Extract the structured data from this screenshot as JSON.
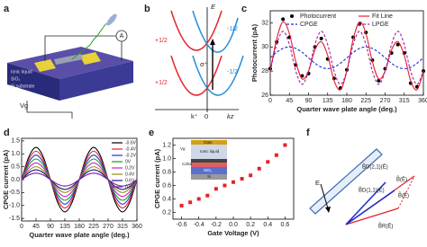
{
  "panel_labels": [
    "a",
    "b",
    "c",
    "d",
    "e",
    "f"
  ],
  "panel_a": {
    "ionic_liquid": "Ionic liquid",
    "sio2": "SiO₂",
    "substrate": "Si substrate",
    "ammeter": "A",
    "gate": "Vg"
  },
  "panel_b": {
    "energy": "E",
    "plus_top": "+1/2",
    "plus_bottom": "+1/2",
    "minus_top": "-1/2",
    "minus_bottom": "-1/2",
    "sigma": "σ⁺",
    "k_plus": "k⁺",
    "zero": "0",
    "kz": "kz"
  },
  "panel_e_inset": {
    "gate": "Gate",
    "ionic_liquid": "Ionic liquid",
    "cdse": "CdSe",
    "sio2": "SiO₂",
    "si": "Si",
    "vg": "Vg"
  },
  "panel_f": {
    "field": "E",
    "b_d21": "B̃D(2,1)(Ẽ)",
    "b_d11": "B̃D(1,1)(Ẽ)",
    "b_r": "B̃R(Ẽ)",
    "b_total": "B̃(Ẽ)",
    "b_total2": "B̃(Ẽ)"
  },
  "chart_data": [
    {
      "type": "line",
      "x_label": "Quarter wave plate angle (deg.)",
      "y_label": "Photocurrent (pA)",
      "x": [
        0,
        15,
        30,
        45,
        60,
        75,
        90,
        105,
        120,
        135,
        150,
        165,
        180,
        195,
        210,
        225,
        240,
        255,
        270,
        285,
        300,
        315,
        330,
        345,
        360
      ],
      "xlim": [
        0,
        360
      ],
      "xticks": [
        0,
        45,
        90,
        135,
        180,
        225,
        270,
        315,
        360
      ],
      "ylim": [
        26,
        33
      ],
      "yticks": [
        26,
        28,
        30,
        32
      ],
      "legend": "top",
      "series": [
        {
          "name": "Photocurrent",
          "color": "#000000",
          "marker": "dot",
          "values": [
            28.2,
            30.4,
            32.3,
            30.8,
            28.5,
            27.6,
            27.8,
            30.0,
            30.7,
            29.0,
            27.4,
            26.6,
            28.1,
            30.8,
            31.9,
            31.2,
            28.9,
            27.2,
            28.2,
            29.5,
            30.2,
            29.5,
            27.0,
            26.7,
            28.0
          ]
        },
        {
          "name": "Fit Line",
          "color": "#e8202a",
          "values": [
            28.0,
            30.65,
            32.08,
            31.1,
            28.78,
            27.35,
            28.0,
            29.75,
            30.43,
            29.3,
            27.22,
            26.45,
            28.0,
            30.65,
            32.08,
            31.1,
            28.78,
            27.35,
            28.0,
            29.75,
            30.43,
            29.3,
            27.22,
            26.45,
            28.0
          ]
        },
        {
          "name": "CPGE",
          "color": "#1f2fd0",
          "dash": true,
          "values": [
            29.1,
            29.55,
            29.88,
            30.0,
            29.88,
            29.55,
            29.1,
            28.65,
            28.32,
            28.2,
            28.32,
            28.65,
            29.1,
            29.55,
            29.88,
            30.0,
            29.88,
            29.55,
            29.1,
            28.65,
            28.32,
            28.2,
            28.32,
            28.65,
            29.1
          ]
        },
        {
          "name": "LPGE",
          "color": "#a020a0",
          "dash": true,
          "values": [
            28.0,
            30.2,
            31.3,
            30.2,
            28.0,
            26.9,
            28.0,
            30.2,
            31.3,
            30.2,
            28.0,
            26.9,
            28.0,
            30.2,
            31.3,
            30.2,
            28.0,
            26.9,
            28.0,
            30.2,
            31.3,
            30.2,
            28.0,
            26.9,
            28.0
          ]
        }
      ]
    },
    {
      "type": "line",
      "x_label": "Quarter wave plate angle (deg.)",
      "y_label": "CPGE current (pA)",
      "x": [
        0,
        22.5,
        45,
        67.5,
        90,
        112.5,
        135,
        157.5,
        180,
        202.5,
        225,
        247.5,
        270,
        292.5,
        315,
        337.5,
        360
      ],
      "xlim": [
        0,
        360
      ],
      "xticks": [
        0,
        45,
        90,
        135,
        180,
        225,
        270,
        315,
        360
      ],
      "ylim": [
        -1.6,
        1.6
      ],
      "yticks": [
        {
          "value": -1.5,
          "label": "-1.5"
        },
        {
          "value": -1,
          "label": "-1.0"
        },
        {
          "value": -0.5,
          "label": "-0.5"
        },
        {
          "value": 0,
          "label": "0.0"
        },
        {
          "value": 0.5,
          "label": "0.5"
        },
        {
          "value": 1,
          "label": "1.0"
        },
        {
          "value": 1.5,
          "label": "1.5"
        }
      ],
      "legend": "upper right",
      "series": [
        {
          "name": "-0.6V",
          "color": "#000000",
          "values": [
            0,
            0.88,
            1.25,
            0.88,
            0,
            -0.88,
            -1.25,
            -0.88,
            0,
            0.88,
            1.25,
            0.88,
            0,
            -0.88,
            -1.25,
            -0.88,
            0
          ]
        },
        {
          "name": "-0.4V",
          "color": "#e8202a",
          "values": [
            0,
            0.78,
            1.1,
            0.78,
            0,
            -0.78,
            -1.1,
            -0.78,
            0,
            0.78,
            1.1,
            0.78,
            0,
            -0.78,
            -1.1,
            -0.78,
            0
          ]
        },
        {
          "name": "-0.2V",
          "color": "#1f2fd0",
          "values": [
            0,
            0.67,
            0.95,
            0.67,
            0,
            -0.67,
            -0.95,
            -0.67,
            0,
            0.67,
            0.95,
            0.67,
            0,
            -0.67,
            -0.95,
            -0.67,
            0
          ]
        },
        {
          "name": "0V",
          "color": "#1a9a1a",
          "values": [
            0,
            0.57,
            0.8,
            0.57,
            0,
            -0.57,
            -0.8,
            -0.57,
            0,
            0.57,
            0.8,
            0.57,
            0,
            -0.57,
            -0.8,
            -0.57,
            0
          ]
        },
        {
          "name": "0.2V",
          "color": "#d020d0",
          "values": [
            0,
            0.46,
            0.65,
            0.46,
            0,
            -0.46,
            -0.65,
            -0.46,
            0,
            0.46,
            0.65,
            0.46,
            0,
            -0.46,
            -0.65,
            -0.46,
            0
          ]
        },
        {
          "name": "0.4V",
          "color": "#909010",
          "values": [
            0,
            0.35,
            0.5,
            0.35,
            0,
            -0.35,
            -0.5,
            -0.35,
            0,
            0.35,
            0.5,
            0.35,
            0,
            -0.35,
            -0.5,
            -0.35,
            0
          ]
        },
        {
          "name": "0.6V",
          "color": "#1a1a80",
          "values": [
            0,
            0.27,
            0.38,
            0.27,
            0,
            -0.27,
            -0.38,
            -0.27,
            0,
            0.27,
            0.38,
            0.27,
            0,
            -0.27,
            -0.38,
            -0.27,
            0
          ]
        },
        {
          "name": "0.8V",
          "color": "#7a1aa0",
          "values": [
            0,
            0.18,
            0.25,
            0.18,
            0,
            -0.18,
            -0.25,
            -0.18,
            0,
            0.18,
            0.25,
            0.18,
            0,
            -0.18,
            -0.25,
            -0.18,
            0
          ]
        }
      ]
    },
    {
      "type": "scatter",
      "x_label": "Gate Voltage (V)",
      "y_label": "CPGE current (pA)",
      "color": "#e8202a",
      "x": [
        -0.6,
        -0.5,
        -0.4,
        -0.3,
        -0.2,
        -0.1,
        0,
        0.1,
        0.2,
        0.3,
        0.4,
        0.5,
        0.6
      ],
      "values": [
        0.3,
        0.35,
        0.4,
        0.45,
        0.55,
        0.6,
        0.65,
        0.7,
        0.75,
        0.85,
        0.95,
        1.05,
        1.2
      ],
      "xlim": [
        -0.7,
        0.7
      ],
      "xticks": [
        -0.6,
        -0.4,
        -0.2,
        {
          "value": 0,
          "label": "0.0"
        },
        0.2,
        0.4,
        0.6
      ],
      "ylim": [
        0.1,
        1.3
      ],
      "yticks": [
        0.2,
        0.4,
        0.6,
        0.8,
        {
          "value": 1,
          "label": "1.0"
        },
        1.2
      ]
    }
  ]
}
